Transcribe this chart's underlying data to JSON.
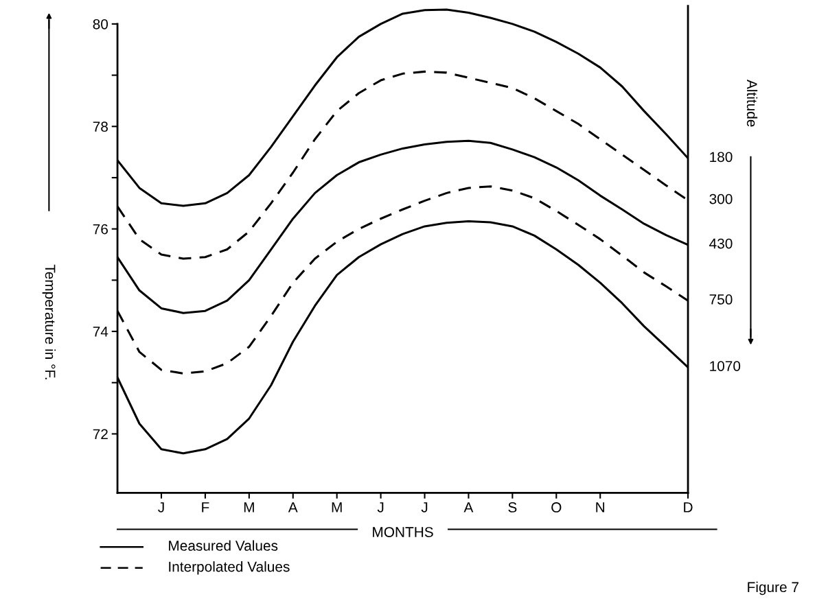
{
  "chart_data": {
    "type": "line",
    "xlabel": "MONTHS",
    "ylabel": "Temperature in °F.",
    "y2label": "Altitude",
    "categories": [
      null,
      null,
      "J",
      null,
      "F",
      null,
      "M",
      null,
      "A",
      null,
      "M",
      null,
      "J",
      null,
      "J",
      null,
      "A",
      null,
      "S",
      null,
      "O",
      null,
      "N",
      null,
      null,
      null,
      "D"
    ],
    "series": [
      {
        "name": "180",
        "color": "#000000",
        "line_style": "solid",
        "values": [
          77.34,
          76.8,
          76.5,
          76.45,
          76.5,
          76.7,
          77.05,
          77.6,
          78.2,
          78.8,
          79.35,
          79.75,
          80.0,
          80.2,
          80.27,
          80.28,
          80.22,
          80.12,
          80.0,
          79.85,
          79.65,
          79.42,
          79.15,
          78.78,
          78.3,
          77.85,
          77.38
        ]
      },
      {
        "name": "300",
        "color": "#000000",
        "line_style": "dashed",
        "values": [
          76.44,
          75.8,
          75.5,
          75.42,
          75.45,
          75.6,
          75.95,
          76.5,
          77.1,
          77.75,
          78.3,
          78.65,
          78.9,
          79.03,
          79.07,
          79.05,
          78.95,
          78.85,
          78.75,
          78.55,
          78.3,
          78.05,
          77.75,
          77.45,
          77.15,
          76.85,
          76.56
        ]
      },
      {
        "name": "430",
        "color": "#000000",
        "line_style": "solid",
        "values": [
          75.45,
          74.8,
          74.45,
          74.36,
          74.4,
          74.6,
          75.0,
          75.6,
          76.2,
          76.7,
          77.05,
          77.3,
          77.45,
          77.57,
          77.65,
          77.7,
          77.72,
          77.68,
          77.55,
          77.4,
          77.2,
          76.95,
          76.65,
          76.38,
          76.1,
          75.88,
          75.69
        ]
      },
      {
        "name": "750",
        "color": "#000000",
        "line_style": "dashed",
        "values": [
          74.4,
          73.6,
          73.25,
          73.18,
          73.22,
          73.38,
          73.7,
          74.3,
          74.95,
          75.42,
          75.75,
          76.0,
          76.2,
          76.38,
          76.55,
          76.7,
          76.8,
          76.83,
          76.75,
          76.6,
          76.35,
          76.08,
          75.8,
          75.48,
          75.15,
          74.88,
          74.6
        ]
      },
      {
        "name": "1070",
        "color": "#000000",
        "line_style": "solid",
        "values": [
          73.1,
          72.2,
          71.7,
          71.62,
          71.7,
          71.9,
          72.3,
          72.95,
          73.8,
          74.5,
          75.1,
          75.45,
          75.7,
          75.9,
          76.05,
          76.12,
          76.15,
          76.13,
          76.05,
          75.87,
          75.6,
          75.3,
          74.95,
          74.55,
          74.1,
          73.7,
          73.3
        ]
      }
    ],
    "ylim": [
      70.85,
      80.35
    ],
    "yticks": [
      72,
      {
        "value": 73,
        "label": null
      },
      74,
      {
        "value": 75,
        "label": null
      },
      76,
      {
        "value": 77,
        "label": null
      },
      78,
      {
        "value": 79,
        "label": null
      },
      80
    ],
    "grid": false,
    "marker": "none",
    "annotations": [
      "Measured Values",
      "Interpolated Values",
      "Figure 7"
    ]
  }
}
